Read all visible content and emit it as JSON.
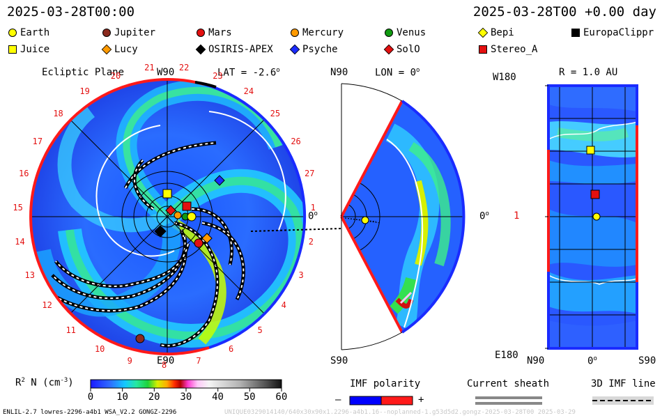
{
  "header": {
    "left_time": "2025-03-28T00:00",
    "right_time": "2025-03-28T00 +0.00 day"
  },
  "legend": [
    {
      "label": "Earth",
      "shape": "circle",
      "color": "#ffff00"
    },
    {
      "label": "Jupiter",
      "shape": "circle",
      "color": "#8b2a1e"
    },
    {
      "label": "Mars",
      "shape": "circle",
      "color": "#e31010"
    },
    {
      "label": "Mercury",
      "shape": "circle",
      "color": "#ff9a00"
    },
    {
      "label": "Venus",
      "shape": "circle",
      "color": "#109a10"
    },
    {
      "label": "Bepi",
      "shape": "diamond",
      "color": "#ffff00"
    },
    {
      "label": "EuropaClippr",
      "shape": "square",
      "color": "#000000"
    },
    {
      "label": "Juice",
      "shape": "square",
      "color": "#ffff00"
    },
    {
      "label": "Lucy",
      "shape": "diamond",
      "color": "#ff9a00"
    },
    {
      "label": "OSIRIS-APEX",
      "shape": "diamond",
      "color": "#000000"
    },
    {
      "label": "Psyche",
      "shape": "diamond",
      "color": "#1a2bff"
    },
    {
      "label": "SolO",
      "shape": "diamond",
      "color": "#e31010"
    },
    {
      "label": "Stereo_A",
      "shape": "square",
      "color": "#e31010"
    }
  ],
  "ecliptic": {
    "title": "Ecliptic Plane",
    "top_label": "W90",
    "lat_label": "LAT = -2.6",
    "lat_sup": "o",
    "right_label": "0",
    "right_sup": "o",
    "bottom_label": "E90",
    "day_numbers": [
      "17",
      "18",
      "19",
      "20",
      "21",
      "22",
      "23",
      "24",
      "25",
      "26",
      "27",
      "1",
      "2",
      "3",
      "4",
      "5",
      "6",
      "7",
      "8",
      "9",
      "10",
      "11",
      "12",
      "13",
      "14",
      "15",
      "16"
    ]
  },
  "meridional": {
    "top_label": "N90",
    "lon_label": "LON = 0",
    "lon_sup": "o",
    "right_label": "0",
    "right_sup": "o",
    "bottom_label": "S90"
  },
  "earth_view": {
    "top_left_label": "W180",
    "r_label": "R = 1.0 AU",
    "mid_left_label": "1",
    "bottom_left_label": "E180",
    "bottom_axis": [
      "N90",
      "0",
      "S90"
    ],
    "bottom_axis_sup": "o"
  },
  "colorbar": {
    "label": "R",
    "label_sup": "2",
    "label_rest": " N (cm",
    "label_exp": "-3",
    "label_close": ")",
    "ticks": [
      "0",
      "10",
      "20",
      "30",
      "40",
      "50",
      "60"
    ]
  },
  "imf": {
    "title": "IMF polarity",
    "minus": "–",
    "plus": "+"
  },
  "sheath": {
    "title": "Current sheath"
  },
  "imf3d": {
    "title": "3D IMF line"
  },
  "footer": {
    "left": "ENLIL-2.7 lowres-2296-a4b1 WSA_V2.2 GONGZ-2296",
    "right": "UNIQUE0329014140/640x30x90x1.2296-a4b1.16--noplanned-1.g53d5d2.gongz-2025-03-28T00    2025-03-29"
  }
}
